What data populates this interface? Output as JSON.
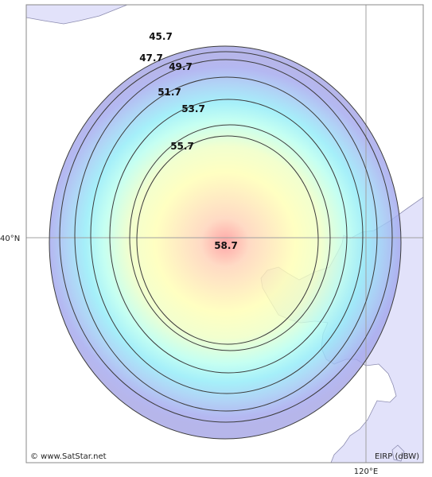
{
  "map": {
    "latitude_label": "40°N",
    "longitude_label": "120°E",
    "credit": "© www.SatStar.net",
    "legend_unit": "EIRP (dBW)",
    "peak_value": "58.7",
    "contours": [
      "45.7",
      "47.7",
      "49.7",
      "51.7",
      "53.7",
      "55.7"
    ],
    "colors": {
      "land": "#e2e2fa",
      "land_stroke": "#8c8cb0",
      "grid": "#a0a0a0",
      "contour": "#3c3c3c",
      "gradient_stops": [
        "#ff8f8f",
        "#ffd2b8",
        "#ffffb4",
        "#efffc4",
        "#b8ffef",
        "#92ecf8",
        "#9fcaf4",
        "#a4a8ee",
        "#a6a6e6"
      ]
    }
  }
}
